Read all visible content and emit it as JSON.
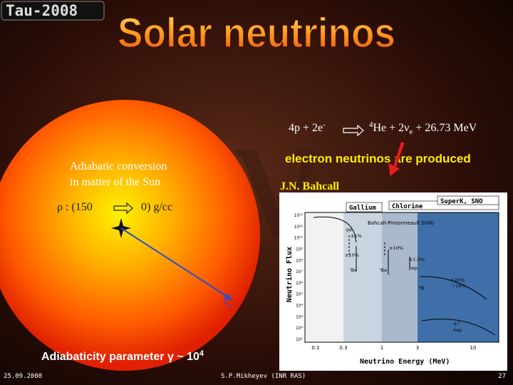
{
  "logo": "Tau-2008",
  "title": "Solar neutrinos",
  "reaction": {
    "lhs": "4p + 2e",
    "lhs_sup": "-",
    "rhs_sup": "4",
    "rhs": "He + 2ν",
    "rhs_sub": "e",
    "rhs_tail": " + 26.73 MeV"
  },
  "note": "electron neutrinos are produced",
  "sun": {
    "line1": "Adiabatic conversion",
    "line2": "in matter of the Sun",
    "density_left": "ρ :  (150",
    "density_right": "0)  g/cc",
    "nu": "ν",
    "nu_sub": "e"
  },
  "credit": "J.N. Bahcall",
  "adiabaticity": "Adiabaticity parameter γ ~ 10",
  "adiabaticity_sup": "4",
  "spectrum": {
    "experiments": [
      "Gallium",
      "Chlorine",
      "SuperK, SNO"
    ],
    "model": "Bahcall-Pinsonneault 2000",
    "y_label": "Neutrino Flux",
    "x_label": "Neutrino Energy (MeV)",
    "y_ticks": [
      "10¹²",
      "10¹¹",
      "10¹⁰",
      "10⁹",
      "10⁸",
      "10⁷",
      "10⁶",
      "10⁵",
      "10⁴",
      "10³",
      "10²",
      "10¹"
    ],
    "x_ticks": [
      "0.1",
      "0.3",
      "1",
      "3",
      "10"
    ],
    "curve_labels": [
      "pp",
      "±1%",
      "±10%",
      "±10%",
      "⁷Be",
      "⁷Be",
      "±1.5%",
      "pep",
      "+20%",
      "−16%",
      "⁸B",
      "±?",
      "hep"
    ]
  },
  "footer": {
    "date": "25.09.2008",
    "author": "S.P.Mikheyev (INR RAS)",
    "page": "27"
  }
}
